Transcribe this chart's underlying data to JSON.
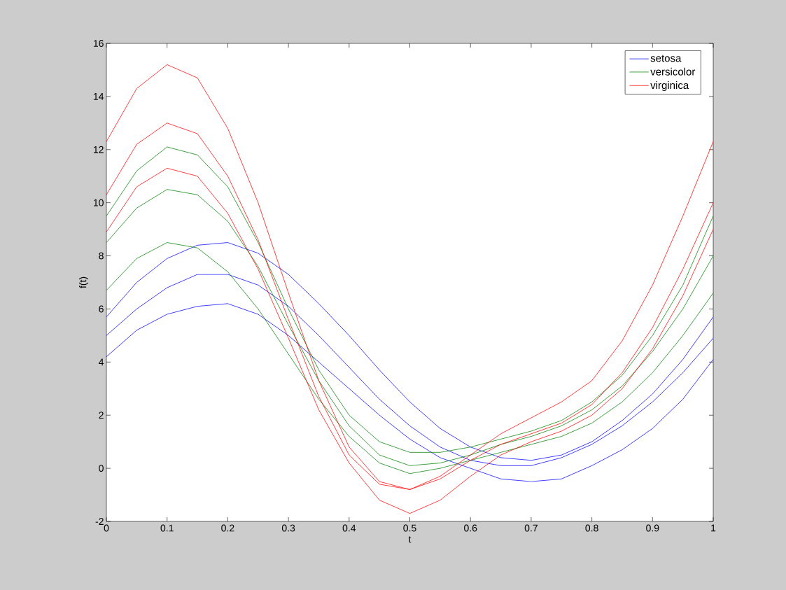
{
  "chart_data": {
    "type": "line",
    "xlabel": "t",
    "ylabel": "f(t)",
    "x": [
      0,
      0.05,
      0.1,
      0.15,
      0.2,
      0.25,
      0.3,
      0.35,
      0.4,
      0.45,
      0.5,
      0.55,
      0.6,
      0.65,
      0.7,
      0.75,
      0.8,
      0.85,
      0.9,
      0.95,
      1
    ],
    "xlim": [
      0,
      1
    ],
    "ylim": [
      -2,
      16
    ],
    "xticks": [
      0,
      0.1,
      0.2,
      0.3,
      0.4,
      0.5,
      0.6,
      0.7,
      0.8,
      0.9,
      1
    ],
    "yticks": [
      -2,
      0,
      2,
      4,
      6,
      8,
      10,
      12,
      14,
      16
    ],
    "legend": "top right",
    "grid": false,
    "series": [
      {
        "name": "setosa",
        "color": "#0000ff",
        "values": [
          5.0,
          6.0,
          6.8,
          7.3,
          7.3,
          6.9,
          6.1,
          5.0,
          3.8,
          2.6,
          1.6,
          0.8,
          0.3,
          0.1,
          0.1,
          0.4,
          0.9,
          1.6,
          2.5,
          3.6,
          4.9
        ]
      },
      {
        "color": "#0000ff",
        "values": [
          5.7,
          7.0,
          7.9,
          8.4,
          8.5,
          8.1,
          7.3,
          6.2,
          5.0,
          3.7,
          2.5,
          1.5,
          0.8,
          0.4,
          0.3,
          0.5,
          1.0,
          1.8,
          2.8,
          4.1,
          5.7
        ]
      },
      {
        "color": "#0000ff",
        "values": [
          4.2,
          5.2,
          5.8,
          6.1,
          6.2,
          5.8,
          5.0,
          4.0,
          3.0,
          2.0,
          1.1,
          0.4,
          0.0,
          -0.4,
          -0.5,
          -0.4,
          0.1,
          0.7,
          1.5,
          2.6,
          4.1
        ]
      },
      {
        "name": "versicolor",
        "color": "#008000",
        "values": [
          8.5,
          9.8,
          10.5,
          10.3,
          9.3,
          7.6,
          5.4,
          3.3,
          1.6,
          0.5,
          0.1,
          0.2,
          0.5,
          0.9,
          1.2,
          1.6,
          2.2,
          3.1,
          4.4,
          6.0,
          8.0
        ]
      },
      {
        "color": "#008000",
        "values": [
          9.5,
          11.2,
          12.1,
          11.8,
          10.6,
          8.5,
          6.0,
          3.7,
          2.0,
          1.0,
          0.6,
          0.6,
          0.8,
          1.1,
          1.4,
          1.8,
          2.5,
          3.5,
          5.0,
          6.9,
          9.5
        ]
      },
      {
        "color": "#008000",
        "values": [
          6.7,
          7.9,
          8.5,
          8.3,
          7.4,
          6.0,
          4.3,
          2.6,
          1.2,
          0.2,
          -0.2,
          0.0,
          0.3,
          0.6,
          0.9,
          1.2,
          1.7,
          2.5,
          3.6,
          5.0,
          6.6
        ]
      },
      {
        "name": "virginica",
        "color": "#ff0000",
        "values": [
          10.3,
          12.2,
          13.0,
          12.6,
          11.0,
          8.6,
          5.6,
          2.7,
          0.5,
          -0.6,
          -0.8,
          -0.4,
          0.3,
          0.9,
          1.3,
          1.7,
          2.4,
          3.6,
          5.3,
          7.5,
          10.0
        ]
      },
      {
        "color": "#ff0000",
        "values": [
          12.3,
          14.3,
          15.2,
          14.7,
          12.8,
          10.0,
          6.6,
          3.3,
          0.8,
          -0.5,
          -0.8,
          -0.3,
          0.5,
          1.3,
          1.9,
          2.5,
          3.3,
          4.8,
          6.9,
          9.5,
          12.3
        ]
      },
      {
        "color": "#ff0000",
        "values": [
          8.9,
          10.6,
          11.3,
          11.0,
          9.6,
          7.5,
          4.9,
          2.2,
          0.2,
          -1.2,
          -1.7,
          -1.2,
          -0.3,
          0.5,
          1.0,
          1.4,
          2.0,
          3.0,
          4.5,
          6.5,
          9.0
        ]
      }
    ]
  }
}
